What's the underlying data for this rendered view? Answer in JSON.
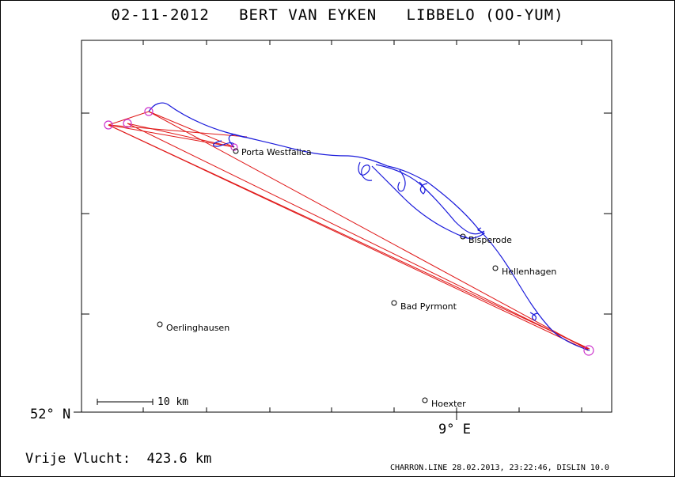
{
  "title": "02-11-2012   BERT VAN EYKEN   LIBBELO (OO-YUM)",
  "axes": {
    "lat_label": "52° N",
    "lon_label": "9° E"
  },
  "scale_bar": "10 km",
  "footer": {
    "distance": "Vrije Vlucht:  423.6 km",
    "credit": "CHARRON.LINE 28.02.2013, 23:22:46, DISLIN 10.0"
  },
  "places": [
    {
      "name": "Porta Westfalica"
    },
    {
      "name": "Bisperode"
    },
    {
      "name": "Hellenhagen"
    },
    {
      "name": "Bad Pyrmont"
    },
    {
      "name": "Oerlinghausen"
    },
    {
      "name": "Hoexter"
    }
  ],
  "turnpoint_count": 5,
  "colors": {
    "track": "#1a1adb",
    "task_legs": "#e01818",
    "turnpoints": "#cc33cc",
    "frame": "#000000"
  }
}
